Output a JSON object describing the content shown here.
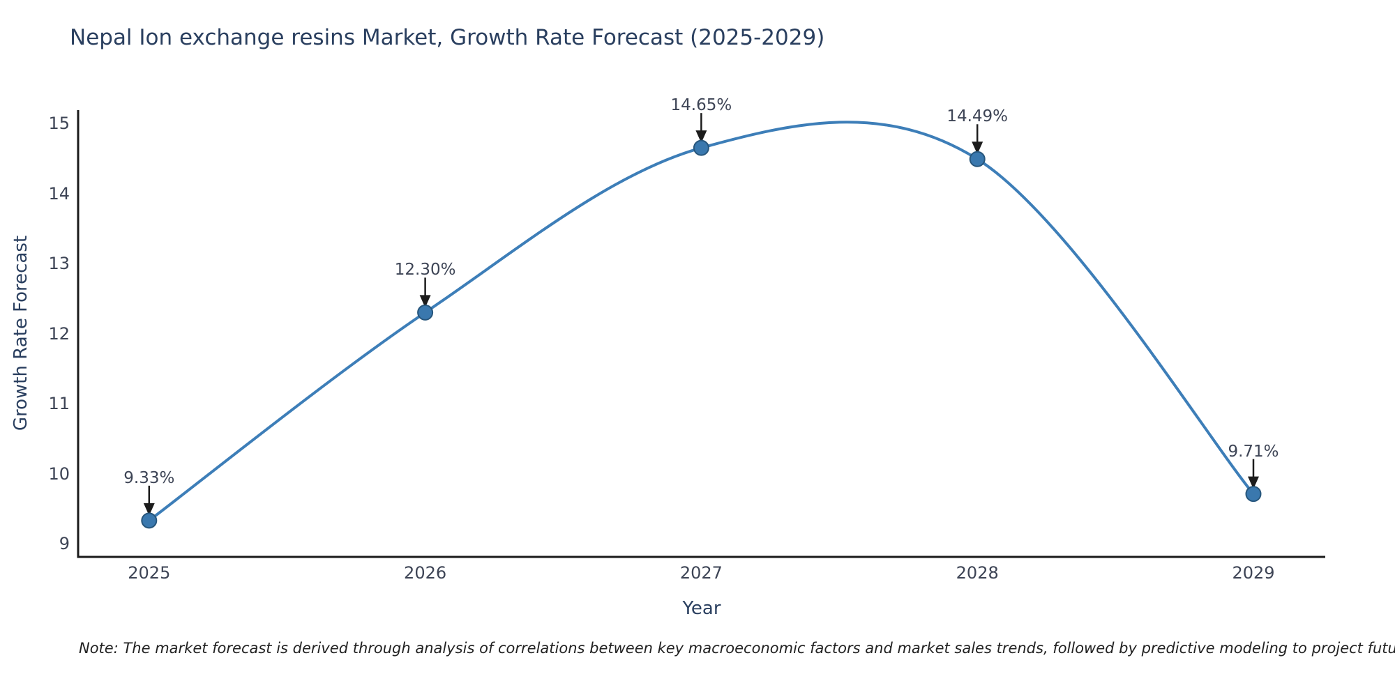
{
  "figure": {
    "note": "Note: The market forecast is derived through analysis of correlations between key macroeconomic factors and market sales trends, followed by predictive modeling to project future sales"
  },
  "chart_data": {
    "type": "line",
    "line_shape": "spline",
    "title": "Nepal Ion exchange resins Market, Growth Rate Forecast (2025-2029)",
    "xlabel": "Year",
    "ylabel": "Growth Rate Forecast",
    "categories": [
      "2025",
      "2026",
      "2027",
      "2028",
      "2029"
    ],
    "series": [
      {
        "name": "Growth Rate Forecast",
        "values": [
          9.33,
          12.3,
          14.65,
          14.49,
          9.71
        ]
      }
    ],
    "point_labels": [
      "9.33%",
      "12.30%",
      "14.65%",
      "14.49%",
      "9.71%"
    ],
    "ylim": [
      9,
      15
    ],
    "yticks": [
      9,
      10,
      11,
      12,
      13,
      14,
      15
    ],
    "grid": false,
    "legend": "none",
    "annotations_have_arrows": true,
    "colors": {
      "line": "#3d7eb8",
      "marker_fill": "#3a78ae",
      "marker_edge": "#27567c",
      "spine": "#1a1a1a",
      "arrow": "#1c1c1c",
      "title_text": "#2a3f5f",
      "tick_text": "#3d4455",
      "background": "#ffffff"
    }
  }
}
